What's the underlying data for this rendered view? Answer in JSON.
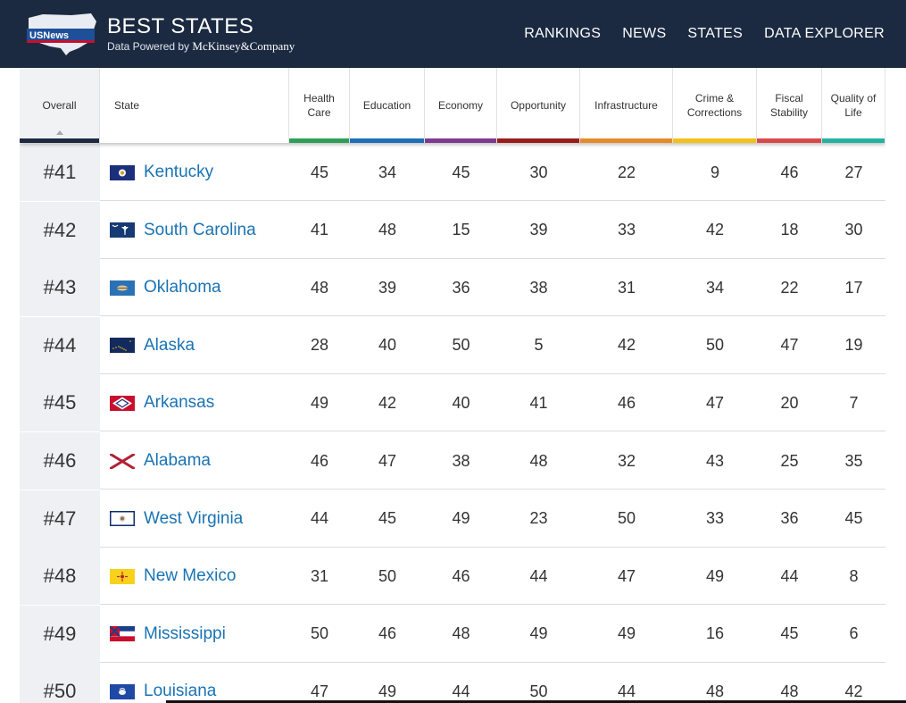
{
  "header": {
    "logo_alt": "U.S. News",
    "logo_text": "USNews",
    "title": "BEST STATES",
    "subtitle": "Data Powered by",
    "subtitle_company": "McKinsey&Company",
    "nav": [
      "RANKINGS",
      "NEWS",
      "STATES",
      "DATA EXPLORER"
    ],
    "bg_color": "#1b2a41"
  },
  "table": {
    "columns": [
      {
        "label": "Overall",
        "color": "#1b2a41"
      },
      {
        "label": "State",
        "color": ""
      },
      {
        "label": "Health Care",
        "color": "#2e9e58"
      },
      {
        "label": "Education",
        "color": "#1f6fb8"
      },
      {
        "label": "Economy",
        "color": "#7d3a8e"
      },
      {
        "label": "Opportunity",
        "color": "#9b1c1c"
      },
      {
        "label": "Infrastructure",
        "color": "#e58a2b"
      },
      {
        "label": "Crime & Corrections",
        "color": "#f3c11b"
      },
      {
        "label": "Fiscal Stability",
        "color": "#d84a4a"
      },
      {
        "label": "Quality of Life",
        "color": "#23b3a0"
      }
    ],
    "rows": [
      {
        "rank": "#41",
        "state": "Kentucky",
        "flag": "kentucky-flag",
        "values": [
          "45",
          "34",
          "45",
          "30",
          "22",
          "9",
          "46",
          "27"
        ]
      },
      {
        "rank": "#42",
        "state": "South Carolina",
        "flag": "south-carolina-flag",
        "values": [
          "41",
          "48",
          "15",
          "39",
          "33",
          "42",
          "18",
          "30"
        ]
      },
      {
        "rank": "#43",
        "state": "Oklahoma",
        "flag": "oklahoma-flag",
        "values": [
          "48",
          "39",
          "36",
          "38",
          "31",
          "34",
          "22",
          "17"
        ]
      },
      {
        "rank": "#44",
        "state": "Alaska",
        "flag": "alaska-flag",
        "values": [
          "28",
          "40",
          "50",
          "5",
          "42",
          "50",
          "47",
          "19"
        ]
      },
      {
        "rank": "#45",
        "state": "Arkansas",
        "flag": "arkansas-flag",
        "values": [
          "49",
          "42",
          "40",
          "41",
          "46",
          "47",
          "20",
          "7"
        ]
      },
      {
        "rank": "#46",
        "state": "Alabama",
        "flag": "alabama-flag",
        "values": [
          "46",
          "47",
          "38",
          "48",
          "32",
          "43",
          "25",
          "35"
        ]
      },
      {
        "rank": "#47",
        "state": "West Virginia",
        "flag": "west-virginia-flag",
        "values": [
          "44",
          "45",
          "49",
          "23",
          "50",
          "33",
          "36",
          "45"
        ]
      },
      {
        "rank": "#48",
        "state": "New Mexico",
        "flag": "new-mexico-flag",
        "values": [
          "31",
          "50",
          "46",
          "44",
          "47",
          "49",
          "44",
          "8"
        ]
      },
      {
        "rank": "#49",
        "state": "Mississippi",
        "flag": "mississippi-flag",
        "values": [
          "50",
          "46",
          "48",
          "49",
          "49",
          "16",
          "45",
          "6"
        ]
      },
      {
        "rank": "#50",
        "state": "Louisiana",
        "flag": "louisiana-flag",
        "values": [
          "47",
          "49",
          "44",
          "50",
          "44",
          "48",
          "48",
          "42"
        ]
      }
    ]
  }
}
